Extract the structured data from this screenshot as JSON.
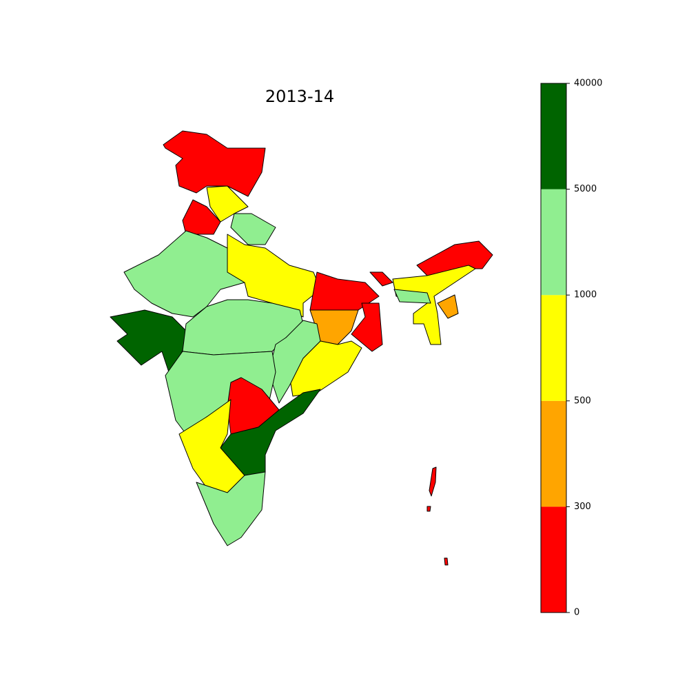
{
  "map": {
    "title": "2013-14",
    "colorbar": {
      "ticks": [
        0,
        300,
        500,
        1000,
        5000,
        40000
      ],
      "colors": [
        "#ff0000",
        "#ffa500",
        "#ffff00",
        "#90ee90",
        "#006400"
      ]
    }
  }
}
